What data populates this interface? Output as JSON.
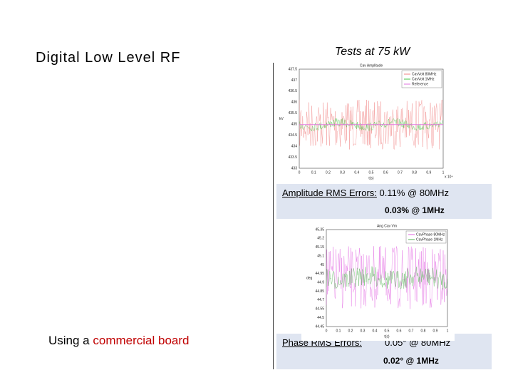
{
  "slide": {
    "title": "Digital Low Level RF",
    "subtitle": "Tests at 75 kW",
    "footer": {
      "lead": "Using a ",
      "highlight": "commercial board"
    },
    "amplitude": {
      "label": "Amplitude RMS Errors:",
      "value_80": " 0.11% @ 80MHz",
      "value_1": "0.03% @ 1MHz"
    },
    "phase": {
      "label": "Phase RMS Errors:",
      "value_80": "0.05° @ 80MHz",
      "value_1": "0.02° @ 1MHz"
    },
    "plots": [
      {
        "title": "Cav Amplitude",
        "ylabel": "kV",
        "xlabel": "t(s)",
        "xnote": "x 10⁴",
        "yticks": [
          "437.5",
          "437",
          "436.5",
          "436",
          "435.5",
          "435",
          "434.5",
          "434",
          "433.5",
          "433"
        ],
        "xticks": [
          "0",
          "0.1",
          "0.2",
          "0.3",
          "0.4",
          "0.5",
          "0.6",
          "0.7",
          "0.8",
          "0.9",
          "1"
        ],
        "legend": [
          "CavVolt 80MHz",
          "CavVolt 1MHz",
          "Reference"
        ]
      },
      {
        "title": "Ang Cav Vm",
        "ylabel": "deg",
        "xlabel": "t(s)",
        "yticks": [
          "45.35",
          "45.2",
          "45.15",
          "45.1",
          "45",
          "44.95",
          "44.9",
          "44.85",
          "44.7",
          "44.55",
          "44.5",
          "44.45"
        ],
        "xticks": [
          "0",
          "0.1",
          "0.2",
          "0.3",
          "0.4",
          "0.5",
          "0.6",
          "0.7",
          "0.8",
          "0.9",
          "1"
        ],
        "legend": [
          "CavPhase 80MHz",
          "CavPhase 1MHz"
        ]
      }
    ]
  }
}
